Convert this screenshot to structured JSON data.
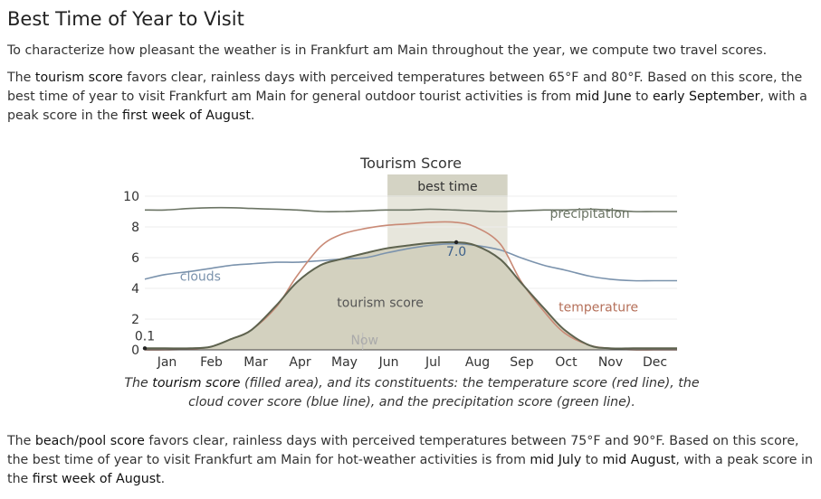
{
  "heading": "Best Time of Year to Visit",
  "intro": "To characterize how pleasant the weather is in Frankfurt am Main throughout the year, we compute two travel scores.",
  "tourism_para": {
    "p1": "The ",
    "k1": "tourism score",
    "p2": " favors clear, rainless days with perceived temperatures between 65°F and 80°F. Based on this score, the best time of year to visit Frankfurt am Main for general outdoor tourist activities is from ",
    "k2": "mid June",
    "p3": " to ",
    "k3": "early September",
    "p4": ", with a peak score in the ",
    "k4": "first week of August",
    "p5": "."
  },
  "caption": {
    "p1": "The ",
    "k1": "tourism score",
    "p2": " (filled area), and its constituents: the temperature score (red line), the cloud cover score (blue line), and the precipitation score (green line)."
  },
  "beach_para": {
    "p1": "The ",
    "k1": "beach/pool score",
    "p2": " favors clear, rainless days with perceived temperatures between 75°F and 90°F. Based on this score, the best time of year to visit Frankfurt am Main for hot-weather activities is from ",
    "k2": "mid July",
    "p3": " to ",
    "k3": "mid August",
    "p4": ", with a peak score in the ",
    "k4": "first week of August",
    "p5": "."
  },
  "chart_data": {
    "type": "area",
    "title": "Tourism Score",
    "ylim": [
      0,
      10
    ],
    "y_ticks": [
      0,
      2,
      4,
      6,
      8,
      10
    ],
    "month_labels": [
      "Jan",
      "Feb",
      "Mar",
      "Apr",
      "May",
      "Jun",
      "Jul",
      "Aug",
      "Sep",
      "Oct",
      "Nov",
      "Dec"
    ],
    "x": [
      1,
      15,
      32,
      46,
      60,
      74,
      91,
      105,
      121,
      135,
      152,
      166,
      182,
      196,
      213,
      227,
      244,
      258,
      274,
      288,
      305,
      319,
      335,
      349,
      365
    ],
    "series": [
      {
        "name": "tourism score",
        "color": "#5e634f",
        "fill": "#d3d1bf",
        "values": [
          0.1,
          0.1,
          0.1,
          0.2,
          0.7,
          1.3,
          2.9,
          4.4,
          5.5,
          5.9,
          6.3,
          6.6,
          6.8,
          6.95,
          7.0,
          6.8,
          5.9,
          4.4,
          2.7,
          1.3,
          0.3,
          0.1,
          0.1,
          0.1,
          0.1
        ]
      },
      {
        "name": "temperature",
        "color": "#c98a76",
        "values": [
          0.0,
          0.0,
          0.05,
          0.2,
          0.7,
          1.3,
          2.8,
          4.8,
          6.7,
          7.5,
          7.9,
          8.1,
          8.2,
          8.3,
          8.3,
          8.0,
          6.9,
          4.5,
          2.5,
          1.1,
          0.3,
          0.1,
          0.0,
          0.0,
          0.0
        ]
      },
      {
        "name": "clouds",
        "color": "#7b93ad",
        "values": [
          4.6,
          4.9,
          5.1,
          5.3,
          5.5,
          5.6,
          5.7,
          5.7,
          5.8,
          5.9,
          6.0,
          6.3,
          6.6,
          6.8,
          6.9,
          6.8,
          6.5,
          6.0,
          5.5,
          5.2,
          4.8,
          4.6,
          4.5,
          4.5,
          4.5
        ]
      },
      {
        "name": "precipitation",
        "color": "#6b7464",
        "values": [
          9.1,
          9.1,
          9.2,
          9.25,
          9.25,
          9.2,
          9.15,
          9.1,
          9.0,
          9.0,
          9.05,
          9.1,
          9.1,
          9.15,
          9.1,
          9.05,
          9.0,
          9.05,
          9.1,
          9.1,
          9.15,
          9.1,
          9.0,
          9.0,
          9.0
        ]
      }
    ],
    "best_time": {
      "label": "best time",
      "start": 167,
      "end": 249
    },
    "now": {
      "label": "Now",
      "x": 150
    },
    "annotations": [
      {
        "label": "0.1",
        "x": 1,
        "y": 0.1
      },
      {
        "label": "7.0",
        "x": 214,
        "y": 7.0
      }
    ],
    "series_labels": [
      {
        "label": "clouds",
        "x": 25,
        "y": 4.5
      },
      {
        "label": "precipitation",
        "x": 278,
        "y": 8.6
      },
      {
        "label": "temperature",
        "x": 284,
        "y": 2.5
      },
      {
        "label": "tourism score",
        "x": 162,
        "y": 2.8
      }
    ]
  }
}
